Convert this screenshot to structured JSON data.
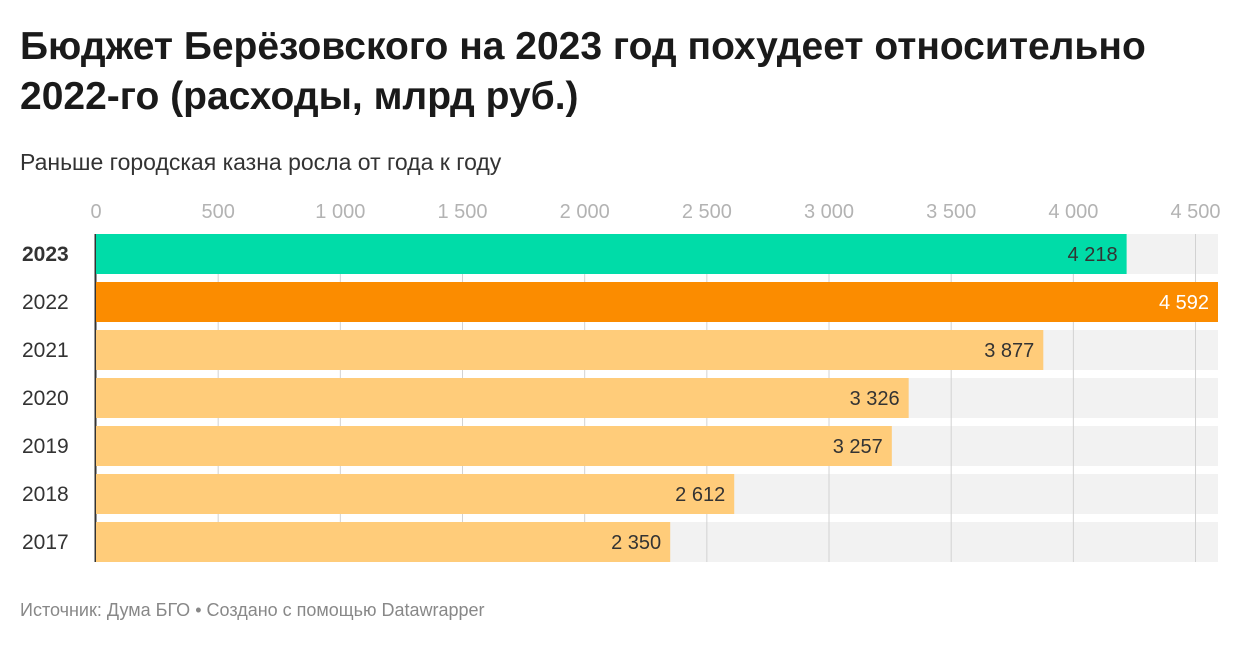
{
  "header": {
    "title": "Бюджет Берёзовского на 2023 год похудеет относительно 2022-го (расходы, млрд руб.)",
    "subtitle": "Раньше городская казна росла от года к году"
  },
  "footer": {
    "source_label": "Источник:",
    "source": "Дума БГО",
    "separator": "•",
    "credit": "Создано с помощью Datawrapper"
  },
  "chart_data": {
    "type": "bar",
    "orientation": "horizontal",
    "title": "Бюджет Берёзовского на 2023 год похудеет относительно 2022-го (расходы, млрд руб.)",
    "subtitle": "Раньше городская казна росла от года к году",
    "categories": [
      "2023",
      "2022",
      "2021",
      "2020",
      "2019",
      "2018",
      "2017"
    ],
    "values": [
      4218,
      4592,
      3877,
      3326,
      3257,
      2612,
      2350
    ],
    "value_labels": [
      "4 218",
      "4 592",
      "3 877",
      "3 326",
      "3 257",
      "2 612",
      "2 350"
    ],
    "bold_categories": [
      "2023"
    ],
    "bar_colors": [
      "#00dca8",
      "#fb8c00",
      "#ffcc7a",
      "#ffcc7a",
      "#ffcc7a",
      "#ffcc7a",
      "#ffcc7a"
    ],
    "value_label_colors": [
      "#333333",
      "#ffffff",
      "#333333",
      "#333333",
      "#333333",
      "#333333",
      "#333333"
    ],
    "background_bar_color": "#f2f2f2",
    "xlim": [
      0,
      4592
    ],
    "xticks": [
      0,
      500,
      1000,
      1500,
      2000,
      2500,
      3000,
      3500,
      4000,
      4500
    ],
    "xtick_labels": [
      "0",
      "500",
      "1 000",
      "1 500",
      "2 000",
      "2 500",
      "3 000",
      "3 500",
      "4 000",
      "4 500"
    ],
    "axis_position": "top",
    "grid": true,
    "xlabel": "",
    "ylabel": ""
  }
}
